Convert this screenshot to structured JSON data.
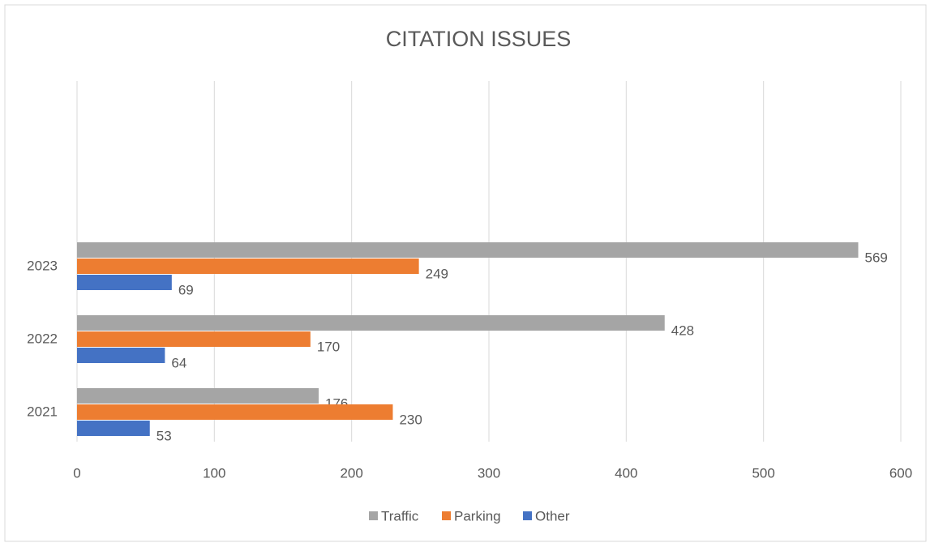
{
  "chart_data": {
    "type": "hbar",
    "title": "CITATION ISSUES",
    "categories": [
      "2021",
      "2022",
      "2023"
    ],
    "series": [
      {
        "name": "Traffic",
        "color": "#a5a5a5",
        "values": [
          176,
          428,
          569
        ]
      },
      {
        "name": "Parking",
        "color": "#ed7d31",
        "values": [
          230,
          170,
          249
        ]
      },
      {
        "name": "Other",
        "color": "#4472c4",
        "values": [
          53,
          64,
          69
        ]
      }
    ],
    "xlim": [
      0,
      600
    ],
    "xticks": [
      0,
      100,
      200,
      300,
      400,
      500,
      600
    ],
    "grid": true,
    "legend": "bottom"
  }
}
